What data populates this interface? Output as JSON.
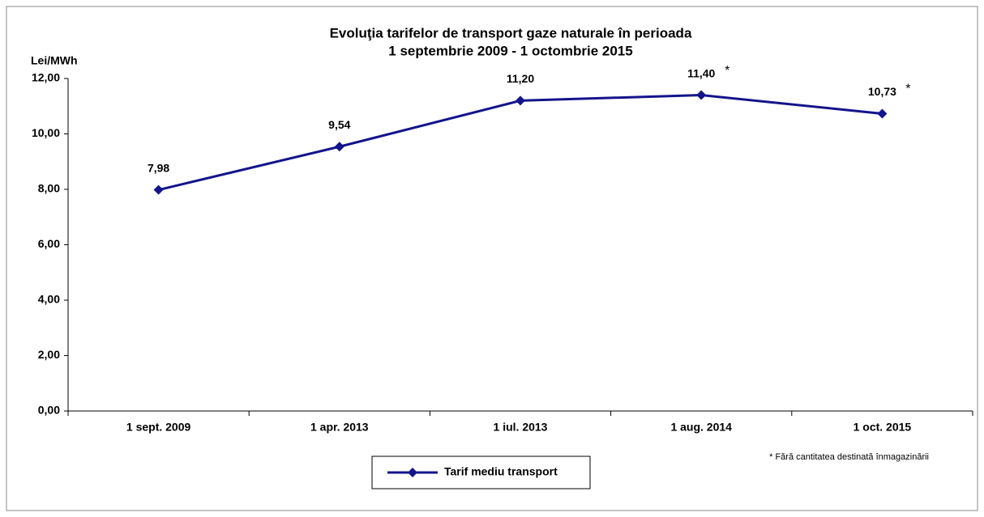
{
  "chart_data": {
    "type": "line",
    "title": [
      "Evoluţia tarifelor de transport gaze naturale în perioada",
      "1 septembrie 2009 - 1 octombrie 2015"
    ],
    "y_label": "Lei/MWh",
    "categories": [
      "1 sept. 2009",
      "1 apr. 2013",
      "1 iul. 2013",
      "1 aug. 2014",
      "1 oct. 2015"
    ],
    "series": [
      {
        "name": "Tarif mediu transport",
        "color": "#14148c",
        "values": [
          7.98,
          9.54,
          11.2,
          11.4,
          10.73
        ],
        "value_labels": [
          "7,98",
          "9,54",
          "11,20",
          "11,40",
          "10,73"
        ],
        "value_notes": [
          null,
          null,
          null,
          "*",
          "*"
        ]
      }
    ],
    "ylim": [
      0,
      12
    ],
    "yticks": [
      {
        "value": 0,
        "label": "0,00"
      },
      {
        "value": 2,
        "label": "2,00"
      },
      {
        "value": 4,
        "label": "4,00"
      },
      {
        "value": 6,
        "label": "6,00"
      },
      {
        "value": 8,
        "label": "8,00"
      },
      {
        "value": 10,
        "label": "10,00"
      },
      {
        "value": 12,
        "label": "12,00"
      }
    ],
    "legend": "bottom",
    "footnote": "* Fără cantitatea destinată înmagazinării"
  }
}
